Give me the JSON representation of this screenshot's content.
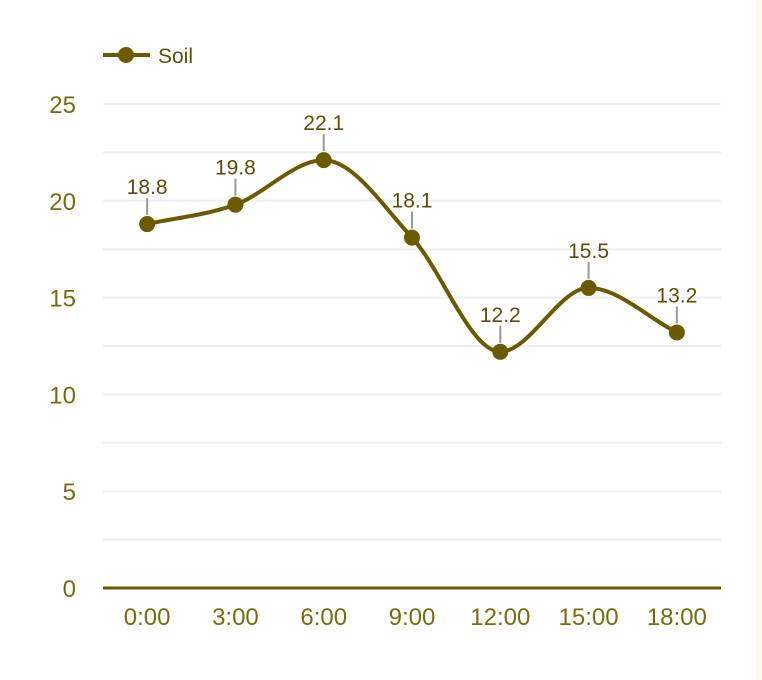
{
  "chart_data": {
    "type": "line",
    "categories": [
      "0:00",
      "3:00",
      "6:00",
      "9:00",
      "12:00",
      "15:00",
      "18:00"
    ],
    "series": [
      {
        "name": "Soil",
        "values": [
          18.8,
          19.8,
          22.1,
          18.1,
          12.2,
          15.5,
          13.2
        ]
      }
    ],
    "ylim": [
      0,
      25
    ],
    "y_ticks": [
      0,
      5,
      10,
      15,
      20,
      25
    ],
    "grid": true,
    "legend": "top-left",
    "smooth": true,
    "colors": {
      "series": "#6b5a00",
      "axis_text": "#7a6a10",
      "label_text": "#5a4f08",
      "grid": "#eeeeee",
      "baseline": "#6b5a00",
      "connector": "#999999"
    }
  }
}
